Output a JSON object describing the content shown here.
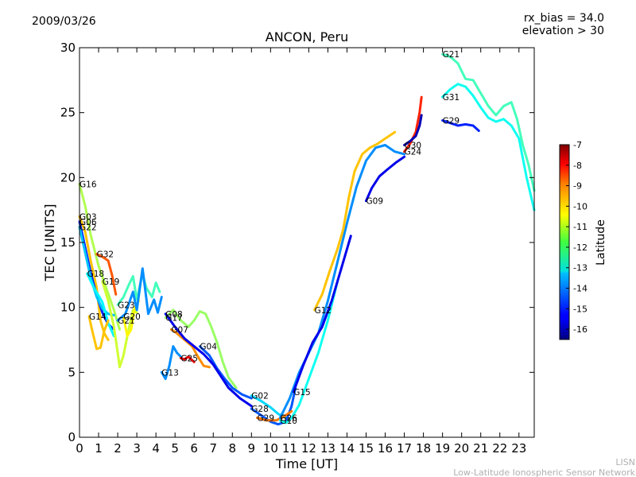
{
  "header": {
    "date": "2009/03/26",
    "rx_bias": "rx_bias = 34.0",
    "elevation": "elevation > 30"
  },
  "footer": {
    "line1": "LISN",
    "line2": "Low-Latitude Ionospheric Sensor Network"
  },
  "colorbar": {
    "label": "Latitude",
    "ticks": [
      "-7",
      "-8",
      "-9",
      "-10",
      "-11",
      "-12",
      "-13",
      "-14",
      "-15",
      "-16"
    ],
    "range": [
      -16.5,
      -7
    ]
  },
  "chart_data": {
    "type": "line",
    "title": "ANCON, Peru",
    "xlabel": "Time [UT]",
    "ylabel": "TEC [UNITS]",
    "xlim": [
      0,
      23.8
    ],
    "ylim": [
      0,
      30
    ],
    "xticks": [
      "0",
      "1",
      "2",
      "3",
      "4",
      "5",
      "6",
      "7",
      "8",
      "9",
      "10",
      "11",
      "12",
      "13",
      "14",
      "15",
      "16",
      "17",
      "18",
      "19",
      "20",
      "21",
      "22",
      "23"
    ],
    "yticks": [
      "0",
      "5",
      "10",
      "15",
      "20",
      "25",
      "30"
    ],
    "grid": false,
    "series": [
      {
        "name": "G16",
        "lat": -11.3,
        "points": [
          [
            0,
            19.5
          ],
          [
            0.3,
            17.8
          ],
          [
            0.6,
            15.5
          ],
          [
            1.0,
            13.2
          ],
          [
            1.4,
            11.5
          ],
          [
            1.8,
            9.8
          ],
          [
            2.1,
            8.3
          ]
        ]
      },
      {
        "name": "G03",
        "lat": -10.0,
        "points": [
          [
            0,
            17.0
          ],
          [
            0.3,
            15.8
          ],
          [
            0.6,
            13.5
          ],
          [
            0.9,
            11.5
          ],
          [
            1.1,
            9.0
          ],
          [
            1.3,
            8.0
          ],
          [
            1.5,
            7.5
          ]
        ]
      },
      {
        "name": "G06",
        "lat": -15.0,
        "points": [
          [
            0,
            16.6
          ],
          [
            0.3,
            14.6
          ],
          [
            0.6,
            12.6
          ],
          [
            0.9,
            10.9
          ],
          [
            1.2,
            9.6
          ],
          [
            1.5,
            8.7
          ],
          [
            1.8,
            8.3
          ]
        ]
      },
      {
        "name": "G22",
        "lat": -13.5,
        "points": [
          [
            0,
            16.2
          ],
          [
            0.3,
            14.2
          ],
          [
            0.6,
            12.2
          ],
          [
            0.9,
            10.8
          ],
          [
            1.2,
            9.9
          ],
          [
            1.5,
            9.5
          ],
          [
            1.8,
            9.4
          ]
        ]
      },
      {
        "name": "G32",
        "lat": -9.0,
        "points": [
          [
            0.9,
            14.1
          ],
          [
            1.2,
            13.9
          ],
          [
            1.5,
            13.6
          ],
          [
            1.7,
            12.5
          ],
          [
            1.9,
            11.0
          ]
        ]
      },
      {
        "name": "G18",
        "lat": -13.0,
        "points": [
          [
            0.4,
            12.6
          ],
          [
            0.8,
            11.4
          ],
          [
            1.2,
            10.4
          ],
          [
            1.5,
            8.8
          ],
          [
            1.8,
            7.8
          ]
        ]
      },
      {
        "name": "G19",
        "lat": -11.0,
        "points": [
          [
            1.2,
            12.0
          ],
          [
            1.5,
            10.5
          ],
          [
            1.8,
            8.5
          ],
          [
            2.0,
            6.5
          ],
          [
            2.1,
            5.4
          ],
          [
            2.3,
            6.3
          ],
          [
            2.6,
            8.5
          ],
          [
            2.8,
            9.8
          ],
          [
            3.0,
            9.6
          ]
        ]
      },
      {
        "name": "G14",
        "lat": -10.0,
        "points": [
          [
            0.5,
            9.3
          ],
          [
            0.7,
            8.0
          ],
          [
            0.9,
            6.8
          ],
          [
            1.1,
            6.9
          ],
          [
            1.3,
            8.2
          ],
          [
            1.5,
            9.0
          ]
        ]
      },
      {
        "name": "G20",
        "lat": -10.5,
        "points": [
          [
            2.3,
            9.3
          ],
          [
            2.5,
            7.8
          ],
          [
            2.7,
            8.3
          ],
          [
            2.9,
            10.0
          ],
          [
            3.1,
            10.5
          ]
        ]
      },
      {
        "name": "G23",
        "lat": -12.3,
        "points": [
          [
            2.0,
            10.2
          ],
          [
            2.3,
            10.8
          ],
          [
            2.6,
            11.8
          ],
          [
            2.8,
            12.4
          ],
          [
            3.0,
            10.6
          ],
          [
            3.3,
            12.6
          ],
          [
            3.5,
            11.5
          ],
          [
            3.8,
            10.8
          ],
          [
            4.0,
            11.9
          ],
          [
            4.2,
            11.2
          ]
        ]
      },
      {
        "name": "G21",
        "lat": -14.0,
        "points": [
          [
            2.0,
            9.0
          ],
          [
            2.4,
            9.5
          ],
          [
            2.8,
            11.2
          ],
          [
            3.0,
            9.8
          ],
          [
            3.3,
            13.0
          ],
          [
            3.6,
            9.5
          ],
          [
            3.9,
            10.6
          ],
          [
            4.1,
            9.6
          ],
          [
            4.3,
            10.8
          ]
        ]
      },
      {
        "name": "G13",
        "lat": -14.0,
        "points": [
          [
            4.3,
            5.0
          ],
          [
            4.5,
            4.5
          ],
          [
            4.7,
            5.5
          ],
          [
            4.9,
            7.0
          ],
          [
            5.1,
            6.5
          ],
          [
            5.3,
            6.2
          ]
        ]
      },
      {
        "name": "G25",
        "lat": -8.0,
        "points": [
          [
            5.3,
            6.1
          ],
          [
            5.5,
            6.0
          ],
          [
            5.7,
            6.2
          ],
          [
            6.0,
            5.8
          ]
        ]
      },
      {
        "name": "G07",
        "lat": -9.5,
        "points": [
          [
            4.8,
            8.3
          ],
          [
            5.1,
            8.0
          ],
          [
            5.5,
            7.5
          ],
          [
            5.9,
            7.0
          ],
          [
            6.2,
            6.2
          ],
          [
            6.5,
            5.5
          ],
          [
            6.8,
            5.4
          ]
        ]
      },
      {
        "name": "G17",
        "lat": -11.5,
        "points": [
          [
            4.5,
            9.2
          ],
          [
            4.9,
            9.8
          ],
          [
            5.3,
            9.0
          ],
          [
            5.7,
            8.5
          ],
          [
            6.0,
            9.0
          ],
          [
            6.3,
            9.7
          ],
          [
            6.6,
            9.5
          ],
          [
            6.9,
            8.5
          ],
          [
            7.2,
            7.3
          ],
          [
            7.5,
            5.8
          ],
          [
            7.8,
            4.6
          ],
          [
            8.2,
            3.8
          ]
        ]
      },
      {
        "name": "G04",
        "lat": -14.5,
        "points": [
          [
            6.3,
            7.0
          ],
          [
            6.8,
            6.3
          ],
          [
            7.2,
            5.3
          ],
          [
            7.6,
            4.5
          ],
          [
            8.0,
            3.8
          ],
          [
            8.5,
            3.3
          ],
          [
            9.0,
            3.0
          ]
        ]
      },
      {
        "name": "G08",
        "lat": -15.5,
        "points": [
          [
            4.5,
            9.5
          ],
          [
            5.0,
            8.5
          ],
          [
            5.5,
            7.6
          ],
          [
            6.0,
            7.0
          ],
          [
            6.5,
            6.4
          ],
          [
            7.0,
            5.6
          ],
          [
            7.4,
            4.7
          ],
          [
            7.8,
            3.8
          ],
          [
            8.4,
            3.0
          ],
          [
            9.0,
            2.4
          ]
        ]
      },
      {
        "name": "G02",
        "lat": -13.3,
        "points": [
          [
            9.0,
            3.2
          ],
          [
            9.5,
            2.8
          ],
          [
            10.0,
            2.3
          ],
          [
            10.4,
            1.8
          ],
          [
            10.8,
            1.5
          ]
        ]
      },
      {
        "name": "G28",
        "lat": -14.5,
        "points": [
          [
            9.0,
            2.2
          ],
          [
            9.5,
            1.7
          ],
          [
            10.0,
            1.2
          ],
          [
            10.4,
            1.0
          ],
          [
            10.8,
            1.2
          ],
          [
            11.1,
            2.4
          ],
          [
            11.3,
            3.8
          ]
        ]
      },
      {
        "name": "G29",
        "lat": -9.3,
        "points": [
          [
            9.3,
            1.5
          ],
          [
            9.8,
            1.3
          ],
          [
            10.3,
            1.3
          ],
          [
            10.7,
            1.6
          ],
          [
            11.1,
            2.0
          ]
        ]
      },
      {
        "name": "G10",
        "lat": -12.8,
        "points": [
          [
            10.5,
            1.3
          ],
          [
            10.8,
            1.1
          ],
          [
            11.1,
            1.5
          ],
          [
            11.5,
            2.5
          ],
          [
            12.0,
            4.5
          ],
          [
            12.5,
            6.5
          ],
          [
            13.0,
            9.0
          ],
          [
            13.5,
            12.0
          ]
        ]
      },
      {
        "name": "G26",
        "lat": -14.0,
        "points": [
          [
            10.5,
            1.5
          ],
          [
            11.0,
            3.0
          ],
          [
            11.5,
            5.0
          ],
          [
            12.0,
            6.5
          ],
          [
            12.5,
            8.0
          ],
          [
            13.0,
            10.5
          ],
          [
            13.5,
            13.5
          ],
          [
            14.0,
            16.5
          ],
          [
            14.5,
            19.3
          ],
          [
            15.0,
            21.3
          ],
          [
            15.5,
            22.3
          ],
          [
            16.0,
            22.5
          ],
          [
            16.5,
            22.0
          ],
          [
            17.0,
            21.8
          ]
        ]
      },
      {
        "name": "G15",
        "lat": -15.5,
        "points": [
          [
            11.2,
            3.5
          ],
          [
            11.7,
            5.5
          ],
          [
            12.2,
            7.3
          ],
          [
            12.7,
            8.5
          ],
          [
            13.2,
            10.5
          ],
          [
            13.7,
            13.0
          ],
          [
            14.2,
            15.5
          ]
        ]
      },
      {
        "name": "G12",
        "lat": -10.0,
        "points": [
          [
            12.3,
            9.8
          ],
          [
            12.7,
            11.0
          ],
          [
            13.1,
            12.8
          ],
          [
            13.5,
            14.5
          ],
          [
            13.8,
            16.0
          ],
          [
            14.1,
            18.5
          ],
          [
            14.4,
            20.5
          ],
          [
            14.8,
            21.8
          ],
          [
            15.2,
            22.3
          ],
          [
            15.6,
            22.6
          ],
          [
            16.0,
            23.0
          ],
          [
            16.5,
            23.5
          ]
        ]
      },
      {
        "name": "G09",
        "lat": -15.5,
        "points": [
          [
            15.0,
            18.2
          ],
          [
            15.3,
            19.2
          ],
          [
            15.7,
            20.1
          ],
          [
            16.1,
            20.6
          ],
          [
            16.6,
            21.2
          ],
          [
            17.0,
            21.6
          ]
        ]
      },
      {
        "name": "G24",
        "lat": -8.5,
        "points": [
          [
            17.0,
            22.0
          ],
          [
            17.3,
            22.6
          ],
          [
            17.6,
            23.5
          ],
          [
            17.8,
            25.0
          ],
          [
            17.9,
            26.2
          ]
        ]
      },
      {
        "name": "G30",
        "lat": -16.0,
        "points": [
          [
            17.0,
            22.5
          ],
          [
            17.3,
            22.8
          ],
          [
            17.6,
            23.2
          ],
          [
            17.8,
            24.0
          ],
          [
            17.9,
            24.8
          ]
        ]
      },
      {
        "name": "G21",
        "lat": -12.3,
        "points": [
          [
            19.0,
            29.5
          ],
          [
            19.4,
            29.3
          ],
          [
            19.8,
            28.8
          ],
          [
            20.2,
            27.6
          ],
          [
            20.6,
            27.5
          ],
          [
            21.0,
            26.5
          ],
          [
            21.4,
            25.5
          ],
          [
            21.8,
            24.8
          ],
          [
            22.2,
            25.5
          ],
          [
            22.6,
            25.8
          ],
          [
            22.9,
            24.5
          ],
          [
            23.2,
            22.5
          ],
          [
            23.5,
            21.0
          ],
          [
            23.8,
            19.0
          ]
        ]
      },
      {
        "name": "G29",
        "lat": -15.0,
        "points": [
          [
            19.0,
            24.4
          ],
          [
            19.4,
            24.2
          ],
          [
            19.8,
            24.0
          ],
          [
            20.2,
            24.1
          ],
          [
            20.6,
            24.0
          ],
          [
            20.9,
            23.6
          ]
        ]
      },
      {
        "name": "G31",
        "lat": -12.8,
        "points": [
          [
            19.0,
            26.2
          ],
          [
            19.4,
            26.8
          ],
          [
            19.8,
            27.2
          ],
          [
            20.2,
            27.0
          ],
          [
            20.6,
            26.3
          ],
          [
            21.0,
            25.4
          ],
          [
            21.4,
            24.6
          ],
          [
            21.8,
            24.3
          ],
          [
            22.2,
            24.5
          ],
          [
            22.6,
            24.0
          ],
          [
            23.0,
            23.0
          ],
          [
            23.4,
            20.0
          ],
          [
            23.8,
            17.5
          ]
        ]
      }
    ]
  }
}
